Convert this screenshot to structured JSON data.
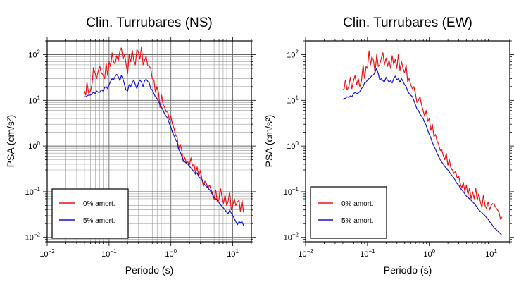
{
  "figure": {
    "background": "#ffffff",
    "series_colors": {
      "0% amort.": "#ee1111",
      "5% amort.": "#1111dd"
    }
  },
  "chart_data": [
    {
      "type": "line",
      "title": "Clin. Turrubares (NS)",
      "xlabel": "Periodo (s)",
      "ylabel": "PSA (cm/s²)",
      "x_scale": "log",
      "y_scale": "log",
      "xlim": [
        0.01,
        20
      ],
      "ylim": [
        0.008,
        200
      ],
      "x_ticks": [
        0.01,
        0.1,
        1,
        10
      ],
      "x_tick_labels": [
        {
          "base": "10",
          "exp": "−2"
        },
        {
          "base": "10",
          "exp": "−1"
        },
        {
          "base": "10",
          "exp": "0"
        },
        {
          "base": "10",
          "exp": "1"
        }
      ],
      "y_ticks": [
        0.01,
        0.1,
        1,
        10,
        100
      ],
      "y_tick_labels": [
        {
          "base": "10",
          "exp": "−2"
        },
        {
          "base": "10",
          "exp": "−1"
        },
        {
          "base": "10",
          "exp": "0"
        },
        {
          "base": "10",
          "exp": "1"
        },
        {
          "base": "10",
          "exp": "2"
        }
      ],
      "grid": true,
      "legend_position": "bottom-left",
      "series": [
        {
          "name": "0% amort.",
          "color": "#ee1111",
          "x": [
            0.04,
            0.042,
            0.044,
            0.047,
            0.05,
            0.053,
            0.056,
            0.06,
            0.063,
            0.067,
            0.071,
            0.075,
            0.08,
            0.085,
            0.09,
            0.095,
            0.1,
            0.106,
            0.112,
            0.118,
            0.125,
            0.133,
            0.141,
            0.15,
            0.158,
            0.168,
            0.178,
            0.188,
            0.2,
            0.211,
            0.224,
            0.237,
            0.251,
            0.266,
            0.282,
            0.299,
            0.316,
            0.335,
            0.355,
            0.376,
            0.398,
            0.422,
            0.447,
            0.473,
            0.501,
            0.531,
            0.562,
            0.596,
            0.631,
            0.668,
            0.708,
            0.75,
            0.794,
            0.841,
            0.891,
            0.944,
            1.0,
            1.06,
            1.12,
            1.19,
            1.26,
            1.33,
            1.41,
            1.5,
            1.58,
            1.68,
            1.78,
            1.88,
            2.0,
            2.11,
            2.24,
            2.37,
            2.51,
            2.66,
            2.82,
            2.99,
            3.16,
            3.35,
            3.55,
            3.76,
            3.98,
            4.22,
            4.47,
            4.73,
            5.01,
            5.31,
            5.62,
            5.96,
            6.31,
            6.68,
            7.08,
            7.5,
            7.94,
            8.41,
            8.91,
            9.44,
            10.0,
            10.6,
            11.2,
            11.9,
            12.6,
            13.3,
            14.1,
            15.0
          ],
          "y": [
            16,
            13,
            25,
            14,
            16,
            22,
            52,
            38,
            30,
            45,
            55,
            40,
            36,
            30,
            65,
            35,
            70,
            55,
            110,
            70,
            62,
            95,
            75,
            120,
            140,
            80,
            100,
            65,
            38,
            100,
            70,
            125,
            75,
            60,
            130,
            110,
            80,
            150,
            60,
            75,
            92,
            58,
            55,
            50,
            30,
            28,
            15,
            20,
            15,
            7,
            13,
            8,
            7,
            5.6,
            5.5,
            3.8,
            4.5,
            3.0,
            2.5,
            1.7,
            1.6,
            0.85,
            1.1,
            0.8,
            0.45,
            0.56,
            0.42,
            0.45,
            0.38,
            0.55,
            0.36,
            0.4,
            0.25,
            0.35,
            0.22,
            0.29,
            0.2,
            0.13,
            0.17,
            0.15,
            0.12,
            0.14,
            0.11,
            0.09,
            0.068,
            0.11,
            0.06,
            0.065,
            0.12,
            0.08,
            0.055,
            0.085,
            0.05,
            0.06,
            0.1,
            0.04,
            0.05,
            0.07,
            0.05,
            0.06,
            0.065,
            0.037,
            0.065,
            0.035
          ]
        },
        {
          "name": "5% amort.",
          "color": "#1111dd",
          "x": [
            0.04,
            0.042,
            0.044,
            0.047,
            0.05,
            0.053,
            0.056,
            0.06,
            0.063,
            0.067,
            0.071,
            0.075,
            0.08,
            0.085,
            0.09,
            0.095,
            0.1,
            0.106,
            0.112,
            0.118,
            0.125,
            0.133,
            0.141,
            0.15,
            0.158,
            0.168,
            0.178,
            0.188,
            0.2,
            0.211,
            0.224,
            0.237,
            0.251,
            0.266,
            0.282,
            0.299,
            0.316,
            0.335,
            0.355,
            0.376,
            0.398,
            0.422,
            0.447,
            0.473,
            0.501,
            0.531,
            0.562,
            0.596,
            0.631,
            0.668,
            0.708,
            0.75,
            0.794,
            0.841,
            0.891,
            0.944,
            1.0,
            1.06,
            1.12,
            1.19,
            1.26,
            1.33,
            1.41,
            1.5,
            1.58,
            1.68,
            1.78,
            1.88,
            2.0,
            2.11,
            2.24,
            2.37,
            2.51,
            2.66,
            2.82,
            2.99,
            3.16,
            3.35,
            3.55,
            3.76,
            3.98,
            4.22,
            4.47,
            4.73,
            5.01,
            5.31,
            5.62,
            5.96,
            6.31,
            6.68,
            7.08,
            7.5,
            7.94,
            8.41,
            8.91,
            9.44,
            10.0,
            10.6,
            11.2,
            11.9,
            12.6,
            13.3,
            14.1,
            15.0
          ],
          "y": [
            12,
            12,
            12.5,
            13,
            13,
            14,
            15,
            14,
            16,
            15,
            15,
            17,
            16,
            19,
            20,
            18,
            22,
            26,
            30,
            28,
            33,
            37,
            33,
            27,
            35,
            30,
            22,
            17,
            16,
            22,
            20,
            24,
            28,
            22,
            18,
            24,
            28,
            25,
            20,
            27,
            29,
            26,
            24,
            18,
            17,
            14,
            12,
            11,
            9.5,
            8,
            7,
            6,
            5,
            4.5,
            4,
            3.1,
            2.6,
            2.0,
            1.7,
            1.4,
            1.2,
            0.85,
            0.75,
            0.6,
            0.48,
            0.45,
            0.42,
            0.4,
            0.36,
            0.33,
            0.3,
            0.27,
            0.24,
            0.26,
            0.21,
            0.2,
            0.18,
            0.16,
            0.14,
            0.13,
            0.12,
            0.11,
            0.1,
            0.085,
            0.075,
            0.07,
            0.065,
            0.058,
            0.052,
            0.048,
            0.044,
            0.04,
            0.036,
            0.033,
            0.04,
            0.034,
            0.03,
            0.026,
            0.022,
            0.019,
            0.022,
            0.021,
            0.022,
            0.018
          ]
        }
      ]
    },
    {
      "type": "line",
      "title": "Clin. Turrubares (EW)",
      "xlabel": "Periodo (s)",
      "ylabel": "PSA (cm/s²)",
      "x_scale": "log",
      "y_scale": "log",
      "xlim": [
        0.01,
        20
      ],
      "ylim": [
        0.008,
        200
      ],
      "x_ticks": [
        0.01,
        0.1,
        1,
        10
      ],
      "x_tick_labels": [
        {
          "base": "10",
          "exp": "−2"
        },
        {
          "base": "10",
          "exp": "−1"
        },
        {
          "base": "10",
          "exp": "0"
        },
        {
          "base": "10",
          "exp": "1"
        }
      ],
      "y_ticks": [
        0.01,
        0.1,
        1,
        10,
        100
      ],
      "y_tick_labels": [
        {
          "base": "10",
          "exp": "−2"
        },
        {
          "base": "10",
          "exp": "−1"
        },
        {
          "base": "10",
          "exp": "0"
        },
        {
          "base": "10",
          "exp": "1"
        },
        {
          "base": "10",
          "exp": "2"
        }
      ],
      "grid": false,
      "legend_position": "bottom-left",
      "series": [
        {
          "name": "0% amort.",
          "color": "#ee1111",
          "x": [
            0.04,
            0.042,
            0.044,
            0.047,
            0.05,
            0.053,
            0.056,
            0.06,
            0.063,
            0.067,
            0.071,
            0.075,
            0.08,
            0.085,
            0.09,
            0.095,
            0.1,
            0.106,
            0.112,
            0.118,
            0.125,
            0.133,
            0.141,
            0.15,
            0.158,
            0.168,
            0.178,
            0.188,
            0.2,
            0.211,
            0.224,
            0.237,
            0.251,
            0.266,
            0.282,
            0.299,
            0.316,
            0.335,
            0.355,
            0.376,
            0.398,
            0.422,
            0.447,
            0.473,
            0.501,
            0.531,
            0.562,
            0.596,
            0.631,
            0.668,
            0.708,
            0.75,
            0.794,
            0.841,
            0.891,
            0.944,
            1.0,
            1.06,
            1.12,
            1.19,
            1.26,
            1.33,
            1.41,
            1.5,
            1.58,
            1.68,
            1.78,
            1.88,
            2.0,
            2.11,
            2.24,
            2.37,
            2.51,
            2.66,
            2.82,
            2.99,
            3.16,
            3.35,
            3.55,
            3.76,
            3.98,
            4.22,
            4.47,
            4.73,
            5.01,
            5.31,
            5.62,
            5.96,
            6.31,
            6.68,
            7.08,
            7.5,
            7.94,
            8.41,
            8.91,
            9.44,
            10.0,
            10.6,
            11.2,
            11.9,
            12.6,
            13.3,
            14.1,
            15.0
          ],
          "y": [
            17,
            18,
            28,
            17,
            20,
            32,
            18,
            28,
            35,
            22,
            30,
            20,
            26,
            60,
            30,
            55,
            50,
            120,
            60,
            90,
            75,
            40,
            100,
            55,
            60,
            85,
            110,
            60,
            85,
            55,
            75,
            50,
            95,
            60,
            80,
            50,
            100,
            45,
            70,
            50,
            40,
            60,
            25,
            30,
            22,
            18,
            20,
            14,
            9,
            10,
            12,
            8,
            6,
            4.5,
            6,
            3.5,
            4,
            2.2,
            3,
            1.6,
            1.8,
            1.3,
            1.1,
            0.8,
            0.85,
            0.62,
            0.5,
            0.7,
            0.38,
            0.5,
            0.32,
            0.3,
            0.25,
            0.28,
            0.2,
            0.22,
            0.15,
            0.12,
            0.16,
            0.1,
            0.14,
            0.085,
            0.12,
            0.07,
            0.1,
            0.07,
            0.12,
            0.065,
            0.09,
            0.06,
            0.045,
            0.085,
            0.05,
            0.042,
            0.06,
            0.04,
            0.05,
            0.055,
            0.052,
            0.045,
            0.04,
            0.037,
            0.025,
            0.028
          ]
        },
        {
          "name": "5% amort.",
          "color": "#1111dd",
          "x": [
            0.04,
            0.042,
            0.044,
            0.047,
            0.05,
            0.053,
            0.056,
            0.06,
            0.063,
            0.067,
            0.071,
            0.075,
            0.08,
            0.085,
            0.09,
            0.095,
            0.1,
            0.106,
            0.112,
            0.118,
            0.125,
            0.133,
            0.141,
            0.15,
            0.158,
            0.168,
            0.178,
            0.188,
            0.2,
            0.211,
            0.224,
            0.237,
            0.251,
            0.266,
            0.282,
            0.299,
            0.316,
            0.335,
            0.355,
            0.376,
            0.398,
            0.422,
            0.447,
            0.473,
            0.501,
            0.531,
            0.562,
            0.596,
            0.631,
            0.668,
            0.708,
            0.75,
            0.794,
            0.841,
            0.891,
            0.944,
            1.0,
            1.06,
            1.12,
            1.19,
            1.26,
            1.33,
            1.41,
            1.5,
            1.58,
            1.68,
            1.78,
            1.88,
            2.0,
            2.11,
            2.24,
            2.37,
            2.51,
            2.66,
            2.82,
            2.99,
            3.16,
            3.35,
            3.55,
            3.76,
            3.98,
            4.22,
            4.47,
            4.73,
            5.01,
            5.31,
            5.62,
            5.96,
            6.31,
            6.68,
            7.08,
            7.5,
            7.94,
            8.41,
            8.91,
            9.44,
            10.0,
            10.6,
            11.2,
            11.9,
            12.6,
            13.3,
            14.1,
            15.0
          ],
          "y": [
            10.5,
            11,
            11,
            12,
            11.5,
            12.5,
            12,
            14,
            15,
            14,
            14.5,
            15.5,
            18,
            20,
            24,
            25,
            28,
            30,
            32,
            35,
            36,
            42,
            50,
            38,
            28,
            30,
            27,
            25,
            32,
            28,
            25,
            27,
            24,
            30,
            34,
            28,
            30,
            25,
            30,
            26,
            22,
            20,
            16,
            14,
            13,
            12,
            10,
            8,
            6.5,
            6,
            5,
            4.5,
            4,
            3.3,
            2.8,
            2.2,
            1.8,
            1.5,
            1.2,
            1.0,
            0.85,
            0.7,
            0.6,
            0.5,
            0.45,
            0.4,
            0.36,
            0.32,
            0.3,
            0.27,
            0.24,
            0.22,
            0.2,
            0.17,
            0.15,
            0.14,
            0.12,
            0.11,
            0.1,
            0.09,
            0.08,
            0.075,
            0.07,
            0.065,
            0.06,
            0.055,
            0.05,
            0.045,
            0.04,
            0.037,
            0.035,
            0.032,
            0.03,
            0.027,
            0.025,
            0.022,
            0.02,
            0.018,
            0.016,
            0.015,
            0.014,
            0.013,
            0.012,
            0.011
          ]
        }
      ]
    }
  ]
}
